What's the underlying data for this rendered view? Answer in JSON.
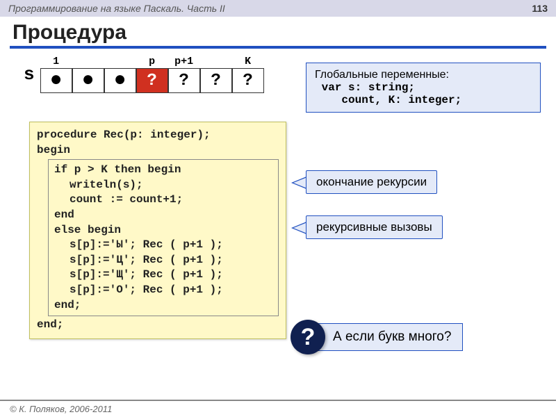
{
  "header": {
    "left": "Программирование на языке Паскаль. Часть II",
    "page": "113"
  },
  "title": "Процедура",
  "array": {
    "label": "s",
    "tops": [
      "1",
      "",
      "",
      "p",
      "p+1",
      "",
      "K"
    ],
    "cells": [
      "●",
      "●",
      "●",
      "?",
      "?",
      "?",
      "?"
    ],
    "redIndex": 3
  },
  "globals": {
    "title": "Глобальные переменные:",
    "line1": "var s: string;",
    "line2": "    count, K: integer;"
  },
  "code": {
    "l1": "procedure Rec(p: integer);",
    "l2": "begin",
    "l3": "if p > K then begin",
    "l4": "writeln(s);",
    "l5": "count := count+1;",
    "l6": "end",
    "l7": "else begin",
    "l8": "s[p]:='Ы'; Rec ( p+1 );",
    "l9": "s[p]:='Ц'; Rec ( p+1 );",
    "l10": "s[p]:='Щ'; Rec ( p+1 );",
    "l11": "s[p]:='О'; Rec ( p+1 );",
    "l12": "end;",
    "l13": "end;"
  },
  "callout1": "окончание рекурсии",
  "callout2": "рекурсивные вызовы",
  "question": {
    "mark": "?",
    "text": "А если букв много?"
  },
  "footer": "© К. Поляков, 2006-2011"
}
